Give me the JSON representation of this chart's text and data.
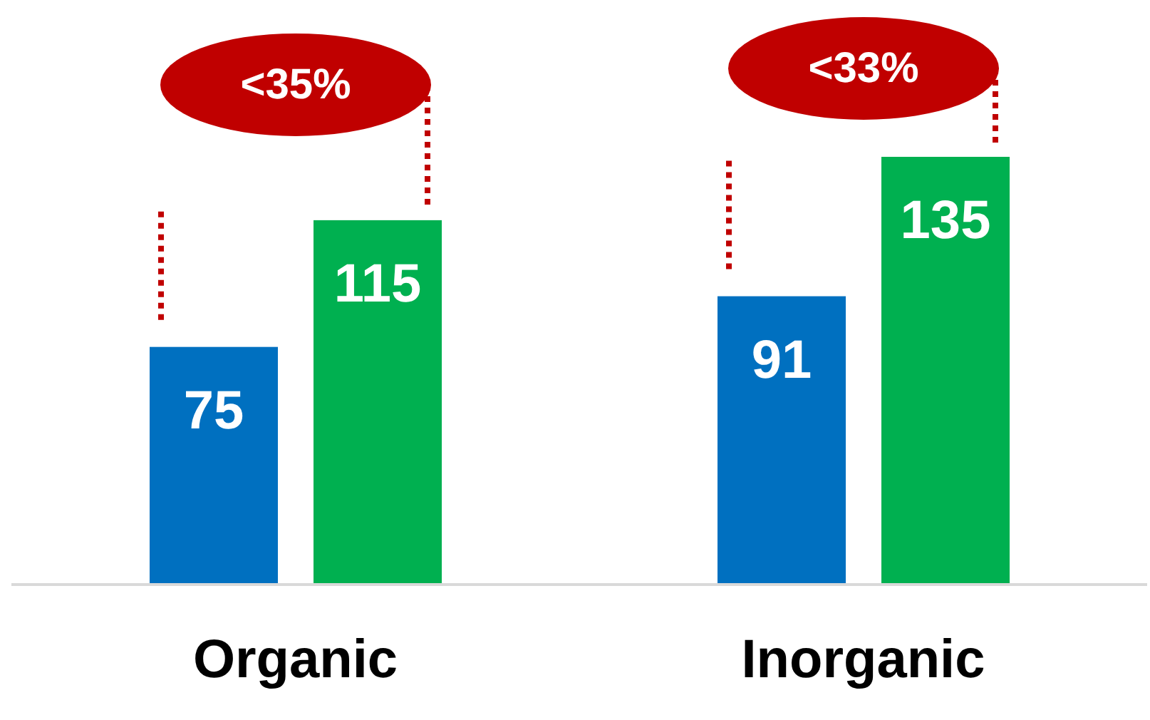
{
  "chart_data": {
    "type": "bar",
    "categories": [
      "Organic",
      "Inorganic"
    ],
    "series": [
      {
        "color": "#0070c0",
        "values": [
          75,
          91
        ]
      },
      {
        "color": "#00b050",
        "values": [
          115,
          135
        ]
      }
    ],
    "data_labels": true,
    "annotations": [
      "<35%",
      "<33%"
    ]
  }
}
